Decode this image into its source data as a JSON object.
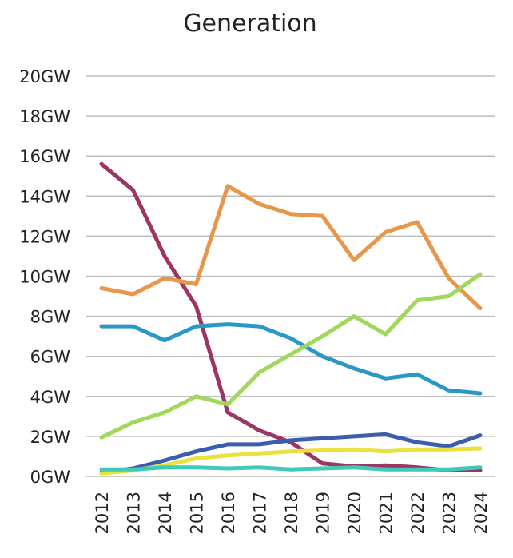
{
  "chart_data": {
    "type": "line",
    "title": "Generation",
    "xlabel": "",
    "ylabel": "",
    "ylim": [
      0,
      20
    ],
    "y_unit": "GW",
    "y_ticks": [
      {
        "value": 0,
        "label": "0GW"
      },
      {
        "value": 2,
        "label": "2GW"
      },
      {
        "value": 4,
        "label": "4GW"
      },
      {
        "value": 6,
        "label": "6GW"
      },
      {
        "value": 8,
        "label": "8GW"
      },
      {
        "value": 10,
        "label": "10GW"
      },
      {
        "value": 12,
        "label": "12GW"
      },
      {
        "value": 14,
        "label": "14GW"
      },
      {
        "value": 16,
        "label": "16GW"
      },
      {
        "value": 18,
        "label": "18GW"
      },
      {
        "value": 20,
        "label": "20GW"
      }
    ],
    "categories": [
      "2012",
      "2013",
      "2014",
      "2015",
      "2016",
      "2017",
      "2018",
      "2019",
      "2020",
      "2021",
      "2022",
      "2023",
      "2024"
    ],
    "grid": true,
    "legend": "none",
    "series": [
      {
        "color": "#9c3565",
        "values": [
          15.6,
          14.3,
          11.0,
          8.5,
          3.2,
          2.3,
          1.7,
          0.65,
          0.5,
          0.55,
          0.45,
          0.3,
          0.3
        ]
      },
      {
        "color": "#e8974a",
        "values": [
          9.4,
          9.1,
          9.9,
          9.6,
          14.5,
          13.6,
          13.1,
          13.0,
          10.8,
          12.2,
          12.7,
          9.9,
          8.4
        ]
      },
      {
        "color": "#2a97c7",
        "values": [
          7.5,
          7.5,
          6.8,
          7.5,
          7.6,
          7.5,
          6.9,
          6.0,
          5.4,
          4.9,
          5.1,
          4.3,
          4.15
        ]
      },
      {
        "color": "#9fd85a",
        "values": [
          1.95,
          2.7,
          3.2,
          4.0,
          3.6,
          5.2,
          6.1,
          7.0,
          8.0,
          7.1,
          8.8,
          9.0,
          10.1
        ]
      },
      {
        "color": "#3a5db0",
        "values": [
          0.2,
          0.4,
          0.8,
          1.25,
          1.6,
          1.6,
          1.8,
          1.9,
          2.0,
          2.1,
          1.7,
          1.5,
          2.05
        ]
      },
      {
        "color": "#ebe13c",
        "values": [
          0.15,
          0.3,
          0.55,
          0.9,
          1.05,
          1.15,
          1.25,
          1.3,
          1.35,
          1.25,
          1.35,
          1.35,
          1.4
        ]
      },
      {
        "color": "#3fc9b8",
        "values": [
          0.35,
          0.35,
          0.45,
          0.45,
          0.4,
          0.45,
          0.35,
          0.4,
          0.45,
          0.35,
          0.35,
          0.35,
          0.45
        ]
      }
    ]
  }
}
